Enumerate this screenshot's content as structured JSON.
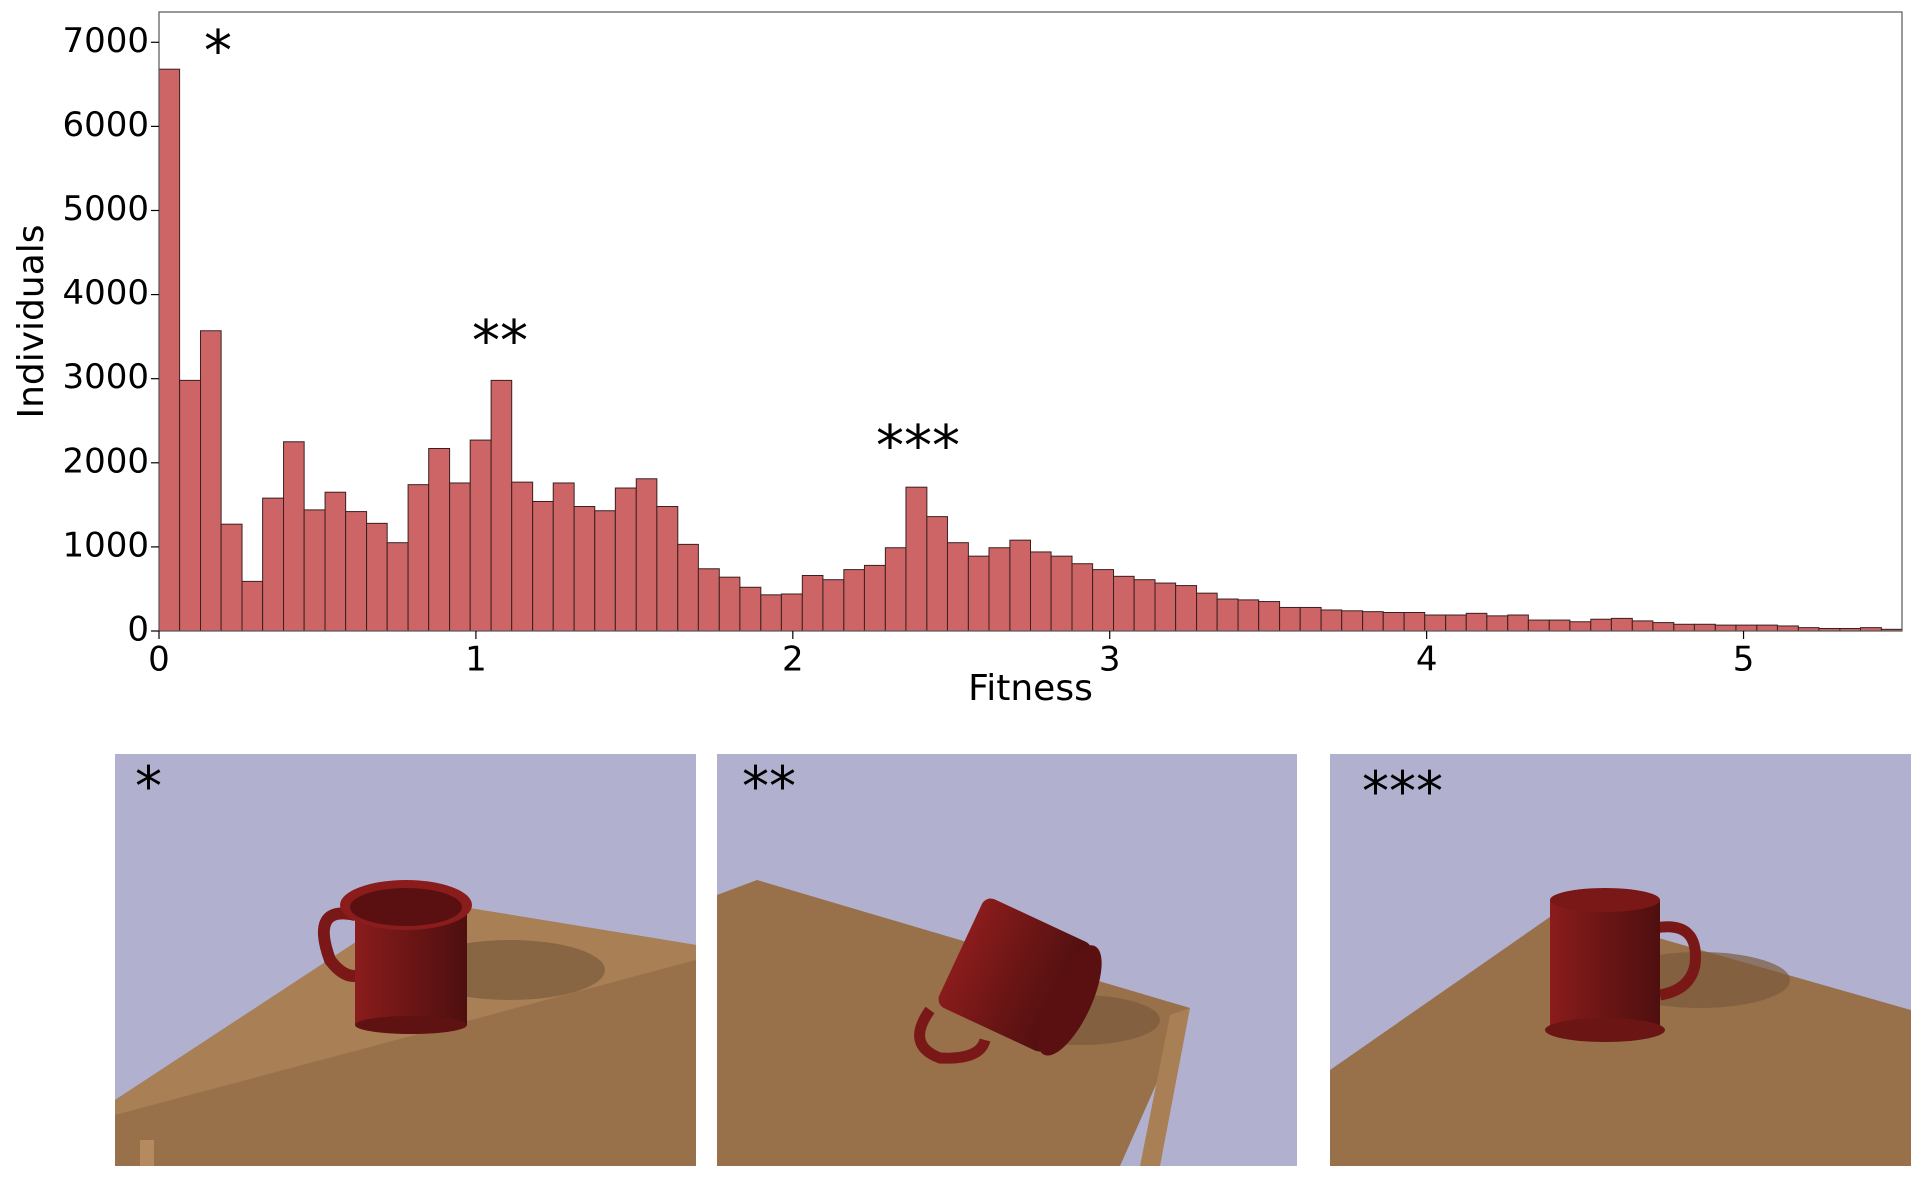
{
  "chart_data": {
    "type": "histogram",
    "x_label": "Fitness",
    "y_label": "Individuals",
    "color": "#cd6566",
    "edgecolor": "#3a2020",
    "bins": [
      0,
      0.065,
      0.131,
      0.196,
      0.262,
      0.327,
      0.393,
      0.458,
      0.524,
      0.589,
      0.655,
      0.72,
      0.786,
      0.851,
      0.917,
      0.982,
      1.048,
      1.113,
      1.179,
      1.244,
      1.31,
      1.375,
      1.44,
      1.506,
      1.571,
      1.637,
      1.702,
      1.768,
      1.833,
      1.899,
      1.964,
      2.03,
      2.095,
      2.161,
      2.226,
      2.292,
      2.357,
      2.423,
      2.488,
      2.554,
      2.619,
      2.685,
      2.75,
      2.815,
      2.881,
      2.946,
      3.012,
      3.077,
      3.143,
      3.208,
      3.274,
      3.339,
      3.405,
      3.47,
      3.536,
      3.601,
      3.667,
      3.732,
      3.798,
      3.863,
      3.929,
      3.994,
      4.06,
      4.125,
      4.19,
      4.256,
      4.321,
      4.387,
      4.452,
      4.518,
      4.583,
      4.649,
      4.714,
      4.78,
      4.845,
      4.911,
      4.976,
      5.042,
      5.107,
      5.173,
      5.238,
      5.304,
      5.369,
      5.435,
      5.5
    ],
    "values": [
      6680,
      2980,
      3570,
      1270,
      590,
      1580,
      2250,
      1440,
      1650,
      1420,
      1280,
      1050,
      1740,
      2170,
      1760,
      2270,
      2980,
      1770,
      1540,
      1760,
      1480,
      1430,
      1700,
      1810,
      1480,
      1030,
      740,
      640,
      520,
      430,
      440,
      660,
      610,
      730,
      780,
      990,
      1710,
      1360,
      1050,
      890,
      990,
      1080,
      940,
      890,
      800,
      730,
      650,
      610,
      570,
      540,
      450,
      380,
      370,
      350,
      280,
      280,
      250,
      240,
      230,
      220,
      220,
      190,
      190,
      210,
      180,
      190,
      130,
      130,
      110,
      140,
      150,
      120,
      100,
      80,
      80,
      70,
      70,
      70,
      60,
      40,
      30,
      30,
      40,
      20
    ],
    "xlim": [
      0,
      5.5
    ],
    "xticks": [
      0,
      1,
      2,
      3,
      4,
      5
    ],
    "ylim": [
      0,
      7360
    ],
    "yticks": [
      0,
      1000,
      2000,
      3000,
      4000,
      5000,
      6000,
      7000
    ],
    "annotations": [
      "*",
      "**",
      "***"
    ]
  },
  "panels": [
    {
      "label": "*"
    },
    {
      "label": "**"
    },
    {
      "label": "***"
    }
  ]
}
